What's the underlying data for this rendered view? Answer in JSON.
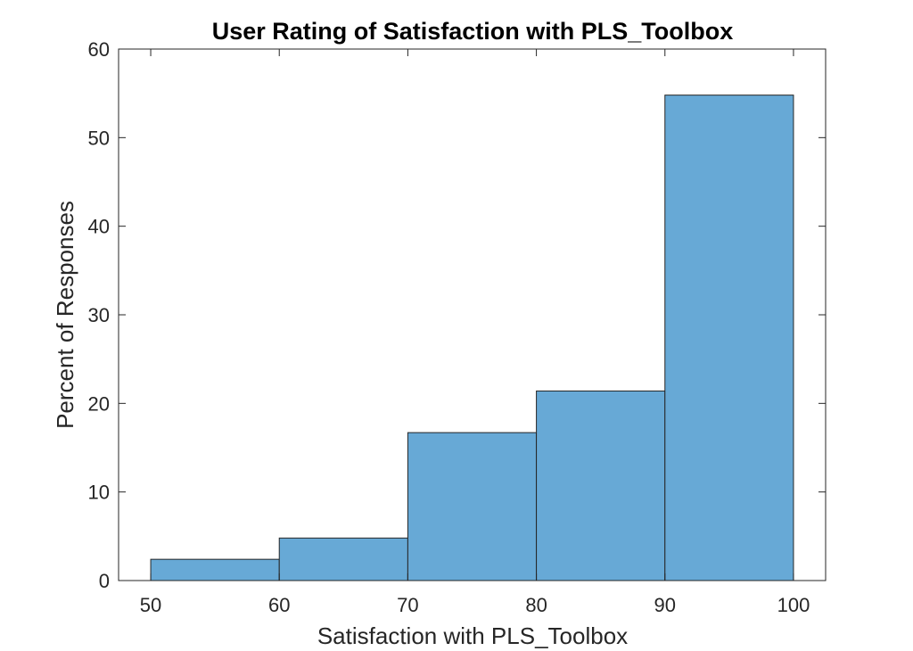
{
  "chart_data": {
    "type": "bar",
    "title": "User Rating of Satisfaction with PLS_Toolbox",
    "xlabel": "Satisfaction with PLS_Toolbox",
    "ylabel": "Percent of Responses",
    "bins": [
      {
        "x0": 50,
        "x1": 60,
        "value": 2.4
      },
      {
        "x0": 60,
        "x1": 70,
        "value": 4.8
      },
      {
        "x0": 70,
        "x1": 80,
        "value": 16.7
      },
      {
        "x0": 80,
        "x1": 90,
        "value": 21.4
      },
      {
        "x0": 90,
        "x1": 100,
        "value": 54.8
      }
    ],
    "xlim": [
      47.5,
      102.5
    ],
    "ylim": [
      0,
      60
    ],
    "xticks": [
      "50",
      "60",
      "70",
      "80",
      "90",
      "100"
    ],
    "yticks": [
      "0",
      "10",
      "20",
      "30",
      "40",
      "50",
      "60"
    ],
    "bar_color": "#67a9d6",
    "grid": false
  }
}
